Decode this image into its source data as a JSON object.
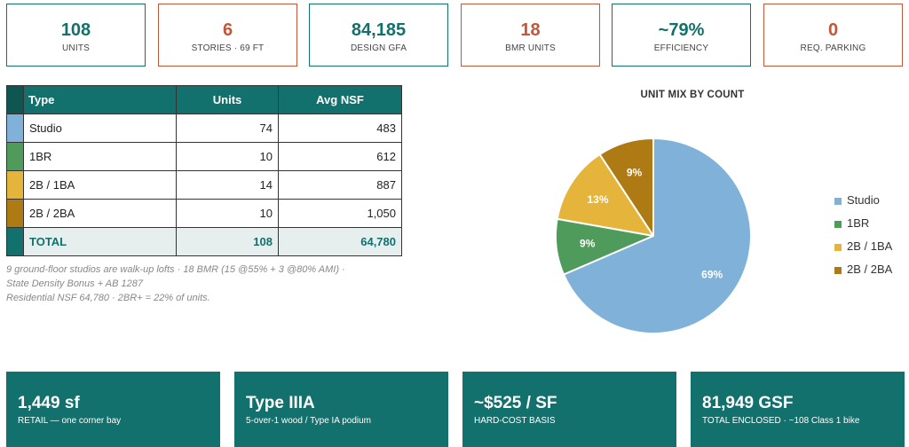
{
  "kpis": [
    {
      "value": "108",
      "label": "UNITS",
      "color": "#12706d"
    },
    {
      "value": "6",
      "label": "STORIES · 69 FT",
      "color": "#c0573a"
    },
    {
      "value": "84,185",
      "label": "DESIGN GFA",
      "color": "#12706d"
    },
    {
      "value": "18",
      "label": "BMR UNITS",
      "color": "#c0573a"
    },
    {
      "value": "~79%",
      "label": "EFFICIENCY",
      "color": "#12706d"
    },
    {
      "value": "0",
      "label": "REQ. PARKING",
      "color": "#c0573a"
    }
  ],
  "table": {
    "headers": [
      "Type",
      "Units",
      "Avg NSF"
    ],
    "rows": [
      {
        "type": "Studio",
        "units": "74",
        "nsf": "483",
        "color": "#7fb1d9"
      },
      {
        "type": "1BR",
        "units": "10",
        "nsf": "612",
        "color": "#4f9b5b"
      },
      {
        "type": "2B / 1BA",
        "units": "14",
        "nsf": "887",
        "color": "#e5b53b"
      },
      {
        "type": "2B / 2BA",
        "units": "10",
        "nsf": "1,050",
        "color": "#ad7a14"
      }
    ],
    "total": {
      "type": "TOTAL",
      "units": "108",
      "nsf": "64,780",
      "color": "#12706d"
    }
  },
  "note": {
    "line1": "9 ground-floor studios are walk-up lofts · 18 BMR (15 @55% + 3 @80% AMI) ·",
    "line2": "State Density Bonus + AB 1287",
    "line3": "Residential NSF 64,780 · 2BR+ = 22% of units."
  },
  "chart_data": {
    "type": "pie",
    "title": "UNIT MIX BY COUNT",
    "categories": [
      "Studio",
      "1BR",
      "2B / 1BA",
      "2B / 2BA"
    ],
    "values": [
      74,
      10,
      14,
      10
    ],
    "labels": [
      "69%",
      "9%",
      "13%",
      "9%"
    ],
    "colors": [
      "#7fb1d9",
      "#4f9b5b",
      "#e5b53b",
      "#ad7a14"
    ],
    "legend_position": "right"
  },
  "tiles": [
    {
      "big": "1,449 sf",
      "small": "RETAIL — one corner bay"
    },
    {
      "big": "Type IIIA",
      "small": "5-over-1 wood / Type IA podium"
    },
    {
      "big": "~$525 / SF",
      "small": "HARD-COST BASIS"
    },
    {
      "big": "81,949 GSF",
      "small": "TOTAL ENCLOSED · ~108 Class 1 bike"
    }
  ]
}
